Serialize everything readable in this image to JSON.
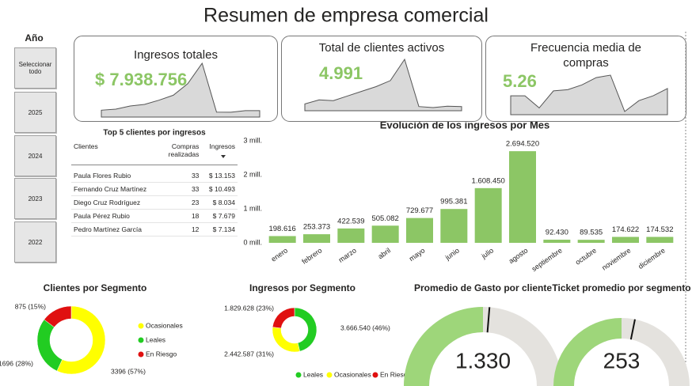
{
  "title": "Resumen de empresa comercial",
  "slicer": {
    "title": "Año",
    "items": [
      "Seleccionar todo",
      "2025",
      "2024",
      "2023",
      "2022"
    ]
  },
  "cards": [
    {
      "title": "Ingresos totales",
      "value": "$ 7.938.756",
      "trend": [
        198616,
        253373,
        422539,
        505082,
        729677,
        995381,
        1608450,
        2694520,
        92430,
        89535,
        174622,
        174532
      ]
    },
    {
      "title": "Total de clientes activos",
      "value": "4.991",
      "trend": [
        150,
        210,
        200,
        270,
        340,
        410,
        500,
        820,
        110,
        95,
        115,
        110
      ]
    },
    {
      "title": "Frecuencia media de compras",
      "value": "5.26",
      "trend": [
        4.8,
        4.8,
        4.3,
        5.0,
        5.05,
        5.25,
        5.55,
        5.65,
        4.15,
        4.6,
        4.8,
        5.1
      ]
    }
  ],
  "table": {
    "title": "Top 5 clientes por ingresos",
    "columns": [
      "Clientes",
      "Compras realizadas",
      "Ingresos"
    ],
    "rows": [
      [
        "Paula Flores Rubio",
        "33",
        "$ 13.153"
      ],
      [
        "Fernando Cruz Martínez",
        "33",
        "$ 10.493"
      ],
      [
        "Diego Cruz Rodríguez",
        "23",
        "$ 8.034"
      ],
      [
        "Paula Pérez Rubio",
        "18",
        "$ 7.679"
      ],
      [
        "Pedro Martínez García",
        "12",
        "$ 7.134"
      ]
    ]
  },
  "chart_data": [
    {
      "type": "bar",
      "title": "Evolución de los ingresos por Mes",
      "categories": [
        "enero",
        "febrero",
        "marzo",
        "abril",
        "mayo",
        "junio",
        "julio",
        "agosto",
        "septiembre",
        "octubre",
        "noviembre",
        "diciembre"
      ],
      "values": [
        198616,
        253373,
        422539,
        505082,
        729677,
        995381,
        1608450,
        2694520,
        92430,
        89535,
        174622,
        174532
      ],
      "value_labels": [
        "198.616",
        "253.373",
        "422.539",
        "505.082",
        "729.677",
        "995.381",
        "1.608.450",
        "2.694.520",
        "92.430",
        "89.535",
        "174.622",
        "174.532"
      ],
      "color": "#8cc665",
      "ylim": [
        0,
        3000000
      ],
      "yticks": [
        {
          "value": 0,
          "label": "0 mill."
        },
        {
          "value": 1000000,
          "label": "1 mill."
        },
        {
          "value": 2000000,
          "label": "2 mill."
        },
        {
          "value": 3000000,
          "label": "3 mill."
        }
      ]
    },
    {
      "type": "donut",
      "title": "Clientes por Segmento",
      "categories": [
        "Ocasionales",
        "Leales",
        "En Riesgo"
      ],
      "values": [
        3396,
        1696,
        875
      ],
      "value_labels": [
        "3396 (57%)",
        "1696 (28%)",
        "875 (15%)"
      ],
      "colors": [
        "#ffff00",
        "#22cc22",
        "#e01010"
      ],
      "legend": "right"
    },
    {
      "type": "donut",
      "title": "Ingresos por Segmento",
      "categories": [
        "Leales",
        "Ocasionales",
        "En Riesgo"
      ],
      "values": [
        3666540,
        2442587,
        1829628
      ],
      "value_labels": [
        "3.666.540 (46%)",
        "2.442.587 (31%)",
        "1.829.628 (23%)"
      ],
      "colors": [
        "#22cc22",
        "#ffff00",
        "#e01010"
      ],
      "legend": "bottom"
    },
    {
      "type": "gauge",
      "title": "Promedio de Gasto por cliente",
      "value": 1330,
      "value_label": "1.330",
      "target": 1400,
      "ylim": [
        0,
        2660
      ],
      "color": "#9ed67a"
    },
    {
      "type": "gauge",
      "title": "Ticket promedio por segmento",
      "value": 253,
      "value_label": "253",
      "target": 285,
      "ylim": [
        0,
        506
      ],
      "color": "#9ed67a"
    }
  ]
}
